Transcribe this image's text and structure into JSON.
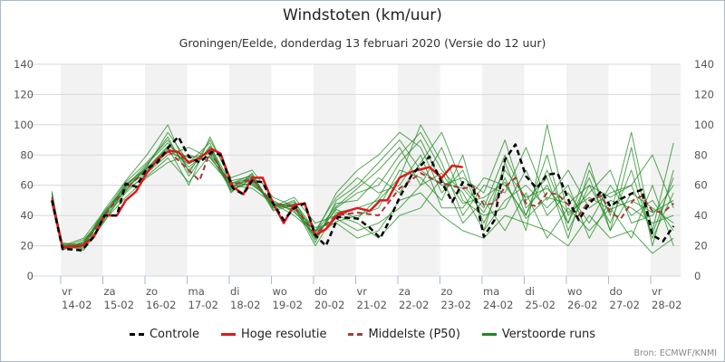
{
  "chart_data": {
    "type": "line",
    "title": "Windstoten (km/uur)",
    "subtitle": "Groningen/Eelde, donderdag 13 februari 2020 (Versie do 12 uur)",
    "ylim": [
      0,
      140
    ],
    "yticks": [
      0,
      20,
      40,
      60,
      80,
      100,
      120,
      140
    ],
    "x_unit": "hours since 14-02 00:00",
    "xlim": [
      -5,
      353
    ],
    "x_ticks": [
      {
        "day": "vr",
        "date": "14-02"
      },
      {
        "day": "za",
        "date": "15-02"
      },
      {
        "day": "zo",
        "date": "16-02"
      },
      {
        "day": "ma",
        "date": "17-02"
      },
      {
        "day": "di",
        "date": "18-02"
      },
      {
        "day": "wo",
        "date": "19-02"
      },
      {
        "day": "do",
        "date": "20-02"
      },
      {
        "day": "vr",
        "date": "21-02"
      },
      {
        "day": "za",
        "date": "22-02"
      },
      {
        "day": "zo",
        "date": "23-02"
      },
      {
        "day": "ma",
        "date": "24-02"
      },
      {
        "day": "di",
        "date": "25-02"
      },
      {
        "day": "wo",
        "date": "26-02"
      },
      {
        "day": "do",
        "date": "27-02"
      },
      {
        "day": "vr",
        "date": "28-02"
      }
    ],
    "shaded_days": [
      0,
      2,
      4,
      6,
      8,
      10,
      12,
      14
    ],
    "grid": true,
    "legend": {
      "position": "bottom",
      "items": [
        {
          "name": "Controle",
          "color": "#000000",
          "style": "dashed"
        },
        {
          "name": "Hoge resolutie",
          "color": "#dd1a1a",
          "style": "solid"
        },
        {
          "name": "Middelste (P50)",
          "color": "#a83a3a",
          "style": "dashed"
        },
        {
          "name": "Verstoorde runs",
          "color": "#1e8a1e",
          "style": "solid"
        }
      ]
    },
    "controle": [
      [
        -5,
        50
      ],
      [
        1,
        18
      ],
      [
        12,
        17
      ],
      [
        19,
        26
      ],
      [
        25,
        40
      ],
      [
        32,
        40
      ],
      [
        37,
        61
      ],
      [
        43,
        59
      ],
      [
        49,
        71
      ],
      [
        55,
        75
      ],
      [
        62,
        86
      ],
      [
        67,
        92
      ],
      [
        73,
        79
      ],
      [
        79,
        75
      ],
      [
        86,
        82
      ],
      [
        91,
        80
      ],
      [
        98,
        58
      ],
      [
        104,
        54
      ],
      [
        109,
        63
      ],
      [
        115,
        62
      ],
      [
        121,
        48
      ],
      [
        127,
        37
      ],
      [
        133,
        45
      ],
      [
        139,
        48
      ],
      [
        145,
        27
      ],
      [
        151,
        20
      ],
      [
        158,
        39
      ],
      [
        169,
        38
      ],
      [
        176,
        32
      ],
      [
        182,
        25
      ],
      [
        186,
        34
      ],
      [
        193,
        52
      ],
      [
        200,
        67
      ],
      [
        210,
        79
      ],
      [
        217,
        62
      ],
      [
        223,
        49
      ],
      [
        229,
        62
      ],
      [
        235,
        59
      ],
      [
        241,
        26
      ],
      [
        247,
        37
      ],
      [
        253,
        77
      ],
      [
        259,
        87
      ],
      [
        265,
        66
      ],
      [
        271,
        58
      ],
      [
        277,
        67
      ],
      [
        283,
        68
      ],
      [
        290,
        48
      ],
      [
        295,
        37
      ],
      [
        301,
        48
      ],
      [
        308,
        56
      ],
      [
        313,
        46
      ],
      [
        319,
        51
      ],
      [
        326,
        55
      ],
      [
        331,
        57
      ],
      [
        337,
        27
      ],
      [
        343,
        23
      ],
      [
        349,
        33
      ]
    ],
    "hoge_resolutie": [
      [
        -5,
        50
      ],
      [
        1,
        19
      ],
      [
        12,
        20
      ],
      [
        19,
        26
      ],
      [
        25,
        40
      ],
      [
        32,
        40
      ],
      [
        37,
        50
      ],
      [
        43,
        56
      ],
      [
        49,
        68
      ],
      [
        55,
        77
      ],
      [
        62,
        83
      ],
      [
        67,
        82
      ],
      [
        73,
        75
      ],
      [
        79,
        78
      ],
      [
        86,
        84
      ],
      [
        91,
        81
      ],
      [
        98,
        59
      ],
      [
        104,
        54
      ],
      [
        109,
        65
      ],
      [
        115,
        65
      ],
      [
        121,
        48
      ],
      [
        127,
        35
      ],
      [
        133,
        47
      ],
      [
        139,
        48
      ],
      [
        145,
        27
      ],
      [
        151,
        31
      ],
      [
        158,
        41
      ],
      [
        169,
        45
      ],
      [
        176,
        43
      ],
      [
        182,
        50
      ],
      [
        186,
        50
      ],
      [
        193,
        65
      ],
      [
        200,
        69
      ],
      [
        210,
        72
      ],
      [
        217,
        65
      ],
      [
        223,
        73
      ],
      [
        229,
        72
      ]
    ],
    "middelste_p50": [
      [
        -5,
        52
      ],
      [
        1,
        20
      ],
      [
        13,
        20
      ],
      [
        25,
        40
      ],
      [
        37,
        58
      ],
      [
        49,
        70
      ],
      [
        61,
        83
      ],
      [
        73,
        70
      ],
      [
        79,
        63
      ],
      [
        85,
        82
      ],
      [
        97,
        60
      ],
      [
        109,
        64
      ],
      [
        121,
        48
      ],
      [
        133,
        46
      ],
      [
        145,
        28
      ],
      [
        157,
        40
      ],
      [
        169,
        42
      ],
      [
        181,
        40
      ],
      [
        193,
        58
      ],
      [
        205,
        68
      ],
      [
        217,
        61
      ],
      [
        229,
        58
      ],
      [
        235,
        59
      ],
      [
        241,
        47
      ],
      [
        247,
        48
      ],
      [
        253,
        59
      ],
      [
        259,
        65
      ],
      [
        265,
        48
      ],
      [
        271,
        46
      ],
      [
        277,
        55
      ],
      [
        283,
        54
      ],
      [
        290,
        46
      ],
      [
        295,
        40
      ],
      [
        301,
        50
      ],
      [
        308,
        53
      ],
      [
        313,
        42
      ],
      [
        319,
        38
      ],
      [
        326,
        50
      ],
      [
        331,
        53
      ],
      [
        337,
        43
      ],
      [
        343,
        42
      ],
      [
        349,
        48
      ]
    ],
    "verstoorde_runs_x": [
      -5,
      1,
      13,
      25,
      37,
      49,
      61,
      73,
      85,
      97,
      109,
      121,
      133,
      145,
      157,
      169,
      181,
      193,
      205,
      217,
      229,
      241,
      253,
      265,
      277,
      289,
      301,
      313,
      325,
      337,
      349
    ],
    "verstoorde_runs": [
      [
        55,
        18,
        22,
        42,
        62,
        75,
        90,
        70,
        85,
        58,
        66,
        45,
        50,
        25,
        45,
        55,
        60,
        80,
        95,
        70,
        55,
        30,
        75,
        40,
        80,
        30,
        60,
        35,
        70,
        25,
        55
      ],
      [
        48,
        20,
        18,
        38,
        55,
        68,
        80,
        85,
        78,
        62,
        60,
        50,
        42,
        30,
        38,
        30,
        35,
        45,
        60,
        85,
        50,
        40,
        45,
        70,
        40,
        55,
        35,
        60,
        40,
        50,
        30
      ],
      [
        52,
        22,
        20,
        41,
        60,
        72,
        95,
        75,
        88,
        55,
        68,
        44,
        48,
        22,
        50,
        60,
        75,
        90,
        70,
        60,
        65,
        55,
        90,
        45,
        60,
        35,
        75,
        30,
        85,
        20,
        70
      ],
      [
        50,
        19,
        24,
        39,
        57,
        66,
        78,
        62,
        80,
        57,
        62,
        47,
        44,
        32,
        35,
        25,
        30,
        50,
        55,
        40,
        30,
        25,
        40,
        35,
        30,
        20,
        40,
        25,
        30,
        15,
        25
      ],
      [
        54,
        21,
        21,
        44,
        63,
        80,
        100,
        68,
        90,
        65,
        70,
        52,
        46,
        20,
        42,
        45,
        50,
        65,
        100,
        75,
        40,
        60,
        55,
        85,
        50,
        70,
        45,
        55,
        60,
        80,
        45
      ],
      [
        47,
        18,
        19,
        37,
        52,
        65,
        75,
        80,
        76,
        60,
        58,
        48,
        40,
        28,
        55,
        70,
        80,
        95,
        85,
        55,
        70,
        35,
        65,
        30,
        100,
        40,
        55,
        70,
        35,
        40,
        60
      ],
      [
        53,
        20,
        25,
        43,
        59,
        74,
        88,
        72,
        84,
        56,
        64,
        46,
        52,
        35,
        40,
        35,
        25,
        40,
        45,
        65,
        35,
        50,
        30,
        55,
        25,
        45,
        30,
        45,
        25,
        60,
        20
      ],
      [
        51,
        17,
        23,
        40,
        61,
        71,
        85,
        60,
        92,
        63,
        66,
        43,
        47,
        24,
        48,
        50,
        65,
        55,
        75,
        95,
        60,
        45,
        80,
        50,
        65,
        25,
        70,
        40,
        95,
        30,
        88
      ],
      [
        49,
        21,
        17,
        36,
        58,
        69,
        82,
        76,
        79,
        59,
        61,
        49,
        43,
        26,
        36,
        40,
        45,
        70,
        65,
        50,
        80,
        30,
        50,
        60,
        45,
        60,
        25,
        50,
        45,
        35,
        40
      ],
      [
        56,
        19,
        22,
        42,
        56,
        73,
        92,
        66,
        86,
        61,
        67,
        45,
        49,
        30,
        52,
        65,
        55,
        60,
        80,
        45,
        45,
        65,
        60,
        40,
        70,
        35,
        65,
        30,
        55,
        45,
        35
      ],
      [
        50,
        20,
        20,
        40,
        60,
        70,
        84,
        74,
        83,
        60,
        63,
        48,
        45,
        27,
        44,
        38,
        52,
        75,
        90,
        62,
        58,
        42,
        70,
        52,
        58,
        42,
        52,
        44,
        50,
        42,
        50
      ],
      [
        52,
        19,
        21,
        41,
        58,
        71,
        86,
        78,
        81,
        61,
        65,
        47,
        47,
        29,
        46,
        58,
        70,
        85,
        60,
        68,
        48,
        52,
        62,
        38,
        52,
        48,
        60,
        52,
        60,
        28,
        65
      ]
    ]
  },
  "source": "Bron: ECMWF/KNMI"
}
